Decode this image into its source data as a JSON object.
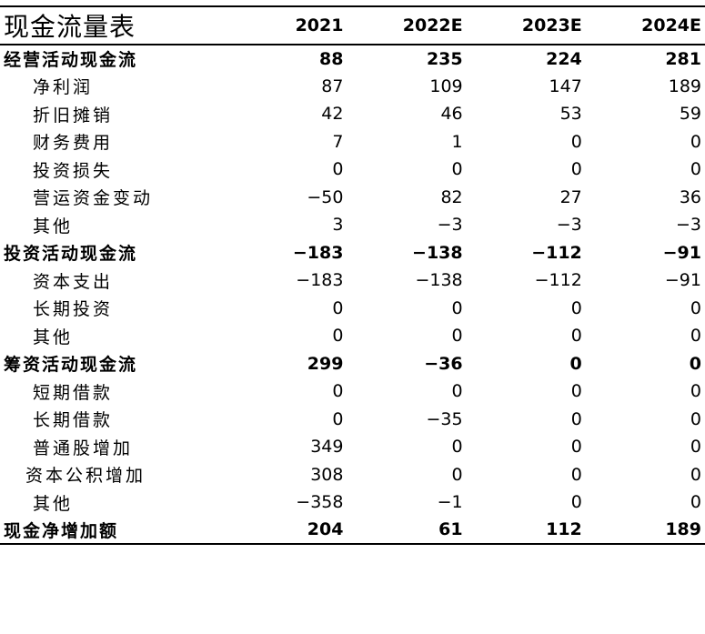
{
  "table": {
    "title": "现金流量表",
    "years": [
      "2021",
      "2022E",
      "2023E",
      "2024E"
    ],
    "rows": [
      {
        "type": "section",
        "label": "经营活动现金流",
        "values": [
          "88",
          "235",
          "224",
          "281"
        ]
      },
      {
        "type": "item",
        "label": "净利润",
        "values": [
          "87",
          "109",
          "147",
          "189"
        ]
      },
      {
        "type": "item",
        "label": "折旧摊销",
        "values": [
          "42",
          "46",
          "53",
          "59"
        ]
      },
      {
        "type": "item",
        "label": "财务费用",
        "values": [
          "7",
          "1",
          "0",
          "0"
        ]
      },
      {
        "type": "item",
        "label": "投资损失",
        "values": [
          "0",
          "0",
          "0",
          "0"
        ]
      },
      {
        "type": "item",
        "label": "营运资金变动",
        "values": [
          "−50",
          "82",
          "27",
          "36"
        ]
      },
      {
        "type": "item",
        "label": "其他",
        "values": [
          "3",
          "−3",
          "−3",
          "−3"
        ]
      },
      {
        "type": "section",
        "label": "投资活动现金流",
        "values": [
          "−183",
          "−138",
          "−112",
          "−91"
        ]
      },
      {
        "type": "item",
        "label": "资本支出",
        "values": [
          "−183",
          "−138",
          "−112",
          "−91"
        ]
      },
      {
        "type": "item",
        "label": "长期投资",
        "values": [
          "0",
          "0",
          "0",
          "0"
        ]
      },
      {
        "type": "item",
        "label": "其他",
        "values": [
          "0",
          "0",
          "0",
          "0"
        ]
      },
      {
        "type": "section",
        "label": "筹资活动现金流",
        "values": [
          "299",
          "−36",
          "0",
          "0"
        ]
      },
      {
        "type": "item",
        "label": "短期借款",
        "values": [
          "0",
          "0",
          "0",
          "0"
        ]
      },
      {
        "type": "item",
        "label": "长期借款",
        "values": [
          "0",
          "−35",
          "0",
          "0"
        ]
      },
      {
        "type": "item",
        "label": "普通股增加",
        "values": [
          "349",
          "0",
          "0",
          "0"
        ]
      },
      {
        "type": "item",
        "label": "资本公积增加",
        "values": [
          "308",
          "0",
          "0",
          "0"
        ]
      },
      {
        "type": "item",
        "label": "其他",
        "values": [
          "−358",
          "−1",
          "0",
          "0"
        ]
      },
      {
        "type": "section",
        "label": "现金净增加额",
        "values": [
          "204",
          "61",
          "112",
          "189"
        ]
      }
    ]
  }
}
